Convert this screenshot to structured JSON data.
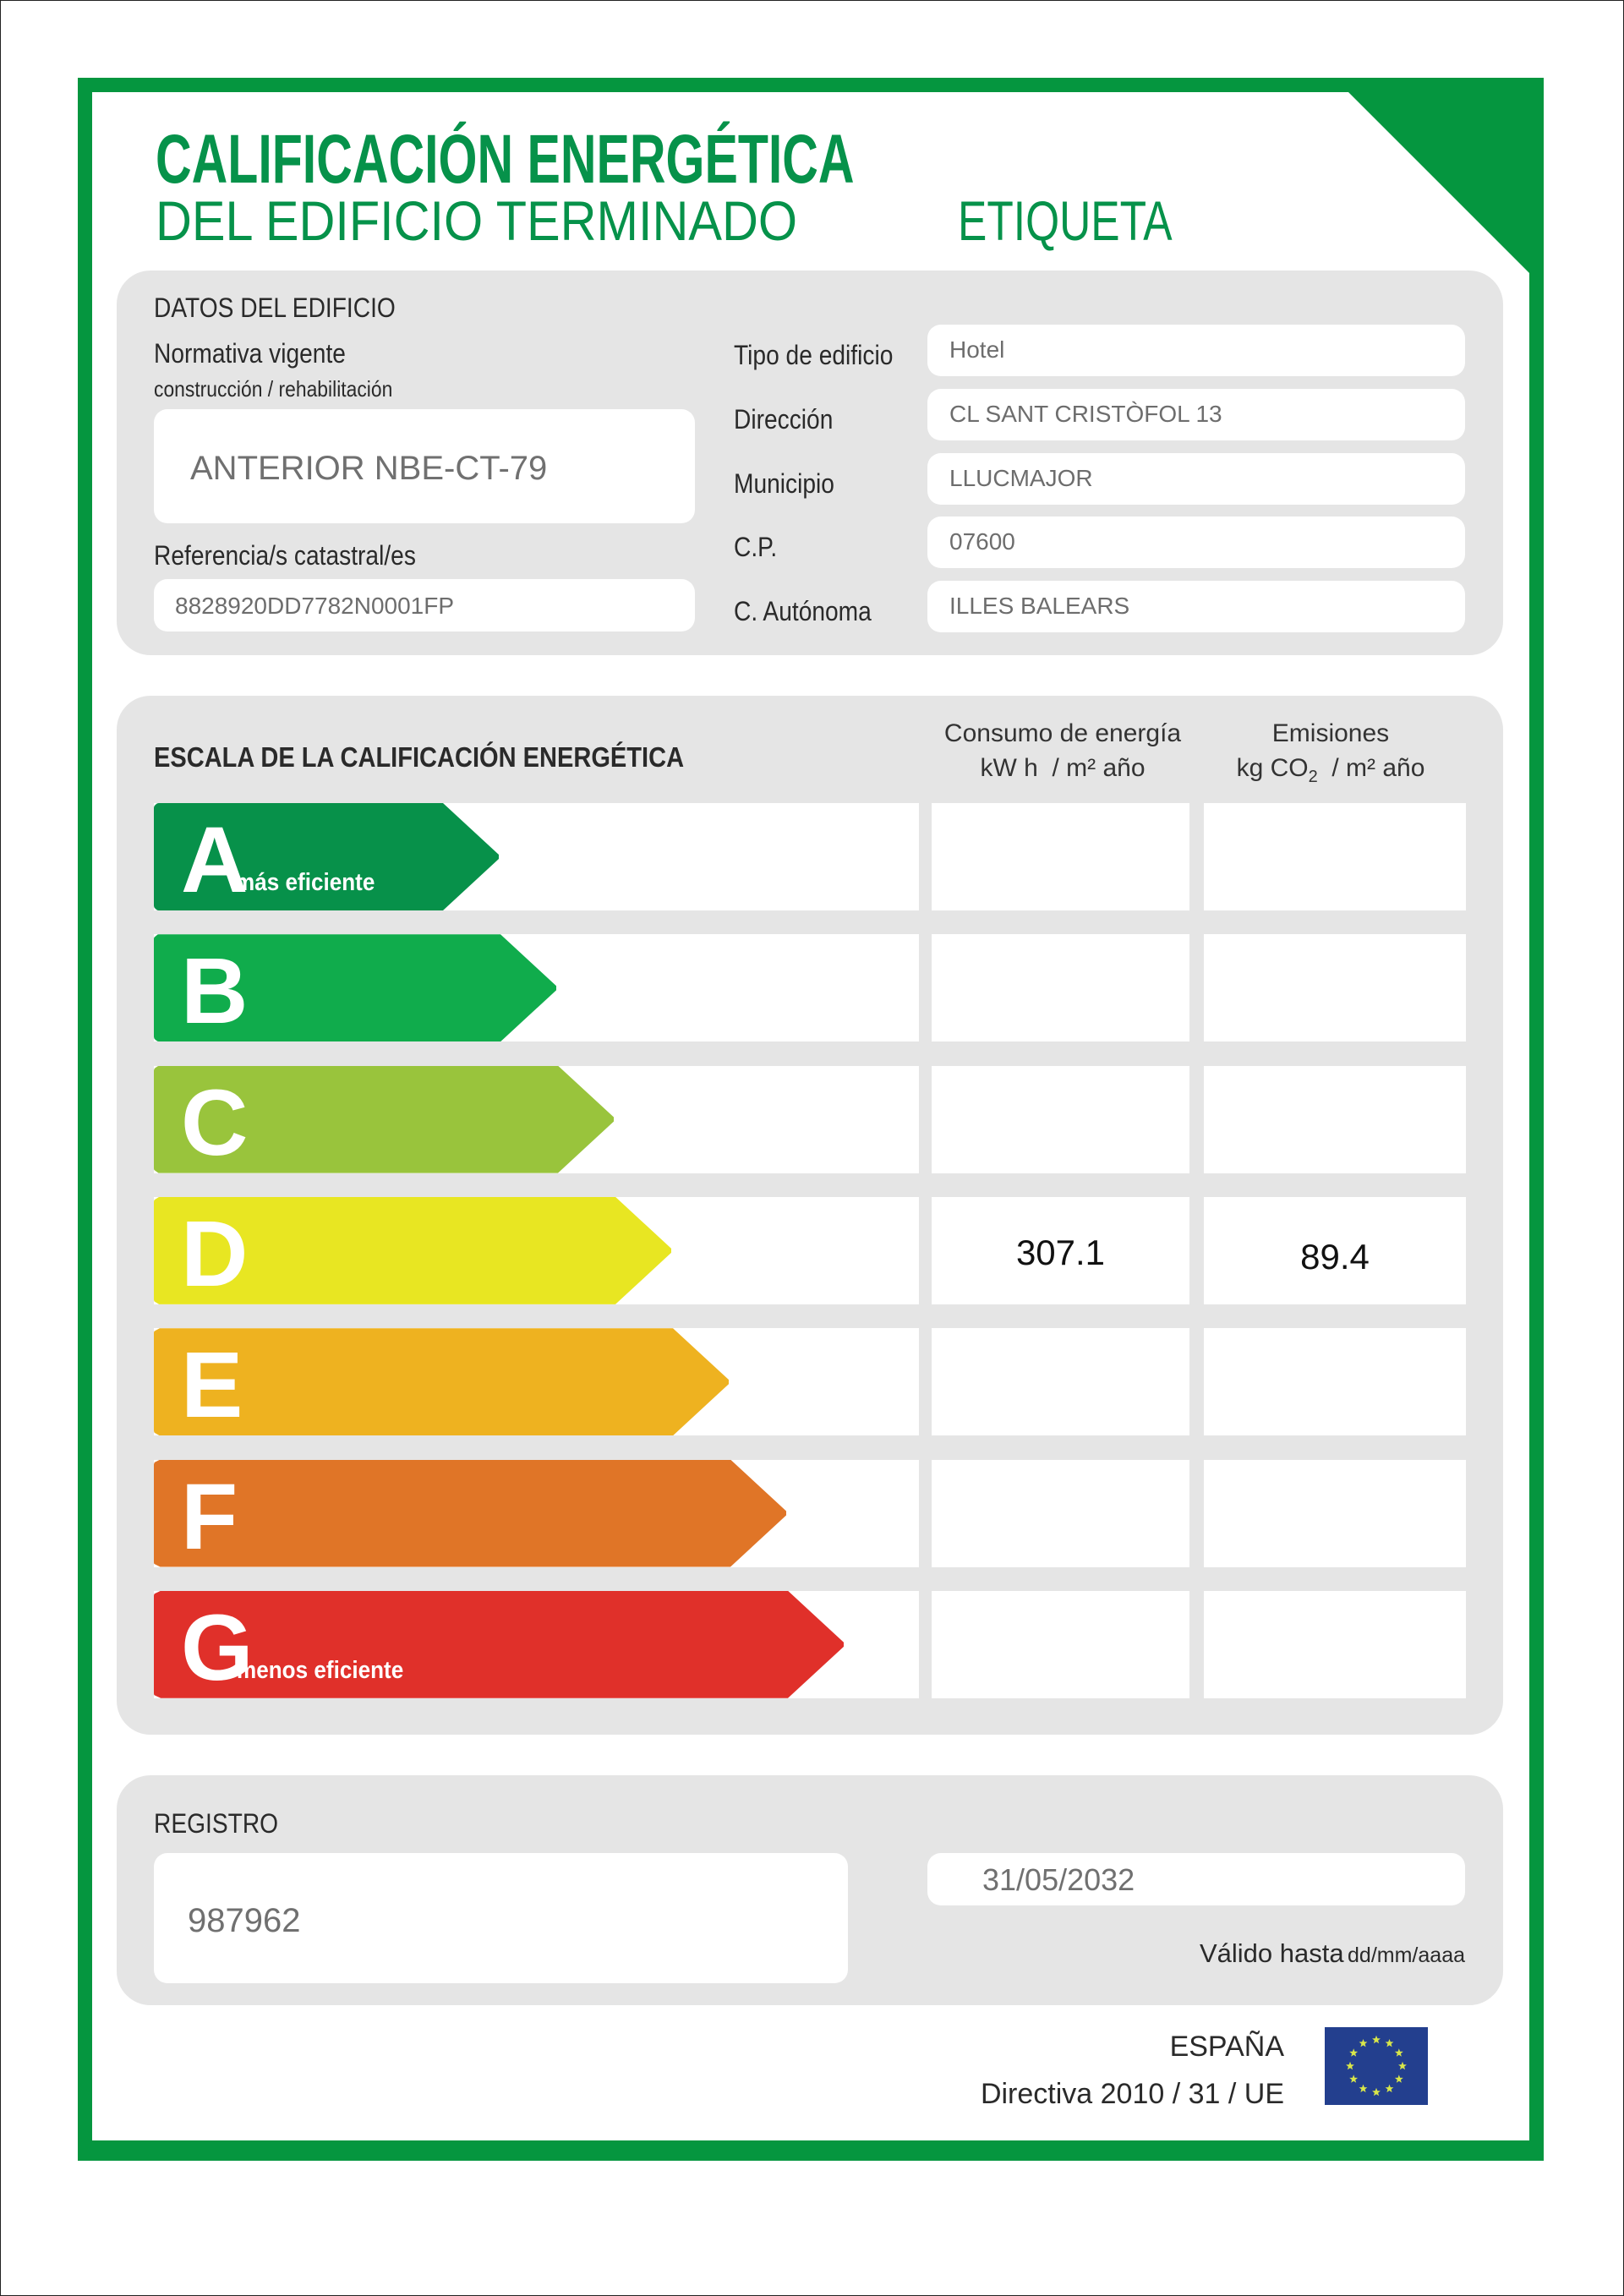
{
  "header": {
    "title_line1": "CALIFICACIÓN ENERGÉTICA",
    "title_line2": "DEL EDIFICIO TERMINADO",
    "label_type": "ETIQUETA",
    "brand_color": "#05963f"
  },
  "building": {
    "section_title": "DATOS DEL EDIFICIO",
    "regulation_label": "Normativa vigente",
    "regulation_sublabel": "construcción / rehabilitación",
    "regulation_value": "ANTERIOR NBE-CT-79",
    "cadastral_label": "Referencia/s catastral/es",
    "cadastral_value": "8828920DD7782N0001FP",
    "fields": [
      {
        "label": "Tipo de edificio",
        "value": "Hotel"
      },
      {
        "label": "Dirección",
        "value": "CL SANT CRISTÒFOL 13"
      },
      {
        "label": "Municipio",
        "value": "LLUCMAJOR"
      },
      {
        "label": "C.P.",
        "value": "07600"
      },
      {
        "label": "C. Autónoma",
        "value": "ILLES BALEARS"
      }
    ]
  },
  "scale": {
    "section_title": "ESCALA DE LA CALIFICACIÓN ENERGÉTICA",
    "energy_header": "Consumo de energía",
    "energy_unit": "kW h  / m² año",
    "emissions_header": "Emisiones",
    "emissions_unit_prefix": "kg CO",
    "emissions_unit_sub": "2",
    "emissions_unit_suffix": "  / m² año",
    "rows": [
      {
        "letter": "A",
        "caption": "más eficiente",
        "color": "#07914a",
        "energy": "",
        "emissions": ""
      },
      {
        "letter": "B",
        "caption": "",
        "color": "#10ac4c",
        "energy": "",
        "emissions": ""
      },
      {
        "letter": "C",
        "caption": "",
        "color": "#99c43c",
        "energy": "",
        "emissions": ""
      },
      {
        "letter": "D",
        "caption": "",
        "color": "#e8e622",
        "energy": "307.1",
        "emissions": "89.4"
      },
      {
        "letter": "E",
        "caption": "",
        "color": "#eeb220",
        "energy": "",
        "emissions": ""
      },
      {
        "letter": "F",
        "caption": "",
        "color": "#e07527",
        "energy": "",
        "emissions": ""
      },
      {
        "letter": "G",
        "caption": "menos eficiente",
        "color": "#e0302a",
        "energy": "",
        "emissions": ""
      }
    ]
  },
  "registry": {
    "section_title": "REGISTRO",
    "number": "987962",
    "valid_until": "31/05/2032",
    "valid_until_label": "Válido hasta",
    "valid_until_format": "dd/mm/aaaa"
  },
  "footer": {
    "country": "ESPAÑA",
    "directive": "Directiva 2010 / 31 / UE",
    "flag_icon": "eu-flag-icon"
  }
}
